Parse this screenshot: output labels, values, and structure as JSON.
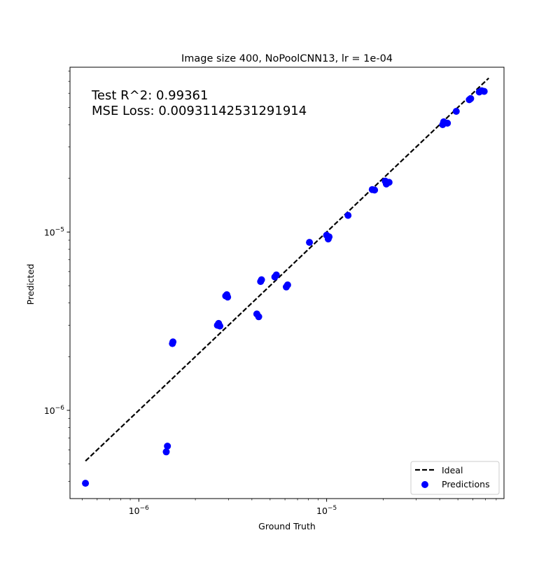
{
  "chart_data": {
    "type": "scatter",
    "title": "Image size 400, NoPoolCNN13, lr = 1e-04",
    "xlabel": "Ground Truth",
    "ylabel": "Predicted",
    "x_scale": "log",
    "y_scale": "log",
    "xlim": [
      4.3e-07,
      8.8e-05
    ],
    "ylim": [
      3.2e-07,
      8.4e-05
    ],
    "x_major_ticks": [
      {
        "value": 1e-06,
        "label": "10^{-6}"
      },
      {
        "value": 1e-05,
        "label": "10^{-5}"
      }
    ],
    "y_major_ticks": [
      {
        "value": 1e-06,
        "label": "10^{-6}"
      },
      {
        "value": 1e-05,
        "label": "10^{-5}"
      }
    ],
    "grid": false,
    "legend": {
      "position": "bottom-right",
      "entries": [
        "Ideal",
        "Predictions"
      ]
    },
    "annotations": [
      "Test R^2: 0.99361",
      "MSE Loss: 0.00931142531291914"
    ],
    "colors": {
      "ideal": "#000000",
      "predictions": "#0000ff"
    },
    "series": [
      {
        "name": "Ideal",
        "kind": "line",
        "style": "dashed",
        "x": [
          5.2e-07,
          7.3e-05
        ],
        "y": [
          5.2e-07,
          7.3e-05
        ]
      },
      {
        "name": "Predictions",
        "kind": "scatter",
        "points": [
          {
            "x": 5.2e-07,
            "y": 3.9e-07
          },
          {
            "x": 1.4e-06,
            "y": 5.85e-07
          },
          {
            "x": 1.42e-06,
            "y": 6.3e-07
          },
          {
            "x": 1.51e-06,
            "y": 2.37e-06
          },
          {
            "x": 1.52e-06,
            "y": 2.42e-06
          },
          {
            "x": 2.62e-06,
            "y": 3e-06
          },
          {
            "x": 2.66e-06,
            "y": 3.07e-06
          },
          {
            "x": 2.7e-06,
            "y": 2.97e-06
          },
          {
            "x": 2.9e-06,
            "y": 4.38e-06
          },
          {
            "x": 2.94e-06,
            "y": 4.45e-06
          },
          {
            "x": 2.97e-06,
            "y": 4.32e-06
          },
          {
            "x": 4.25e-06,
            "y": 3.47e-06
          },
          {
            "x": 4.35e-06,
            "y": 3.35e-06
          },
          {
            "x": 4.45e-06,
            "y": 5.28e-06
          },
          {
            "x": 4.5e-06,
            "y": 5.4e-06
          },
          {
            "x": 5.3e-06,
            "y": 5.6e-06
          },
          {
            "x": 5.4e-06,
            "y": 5.75e-06
          },
          {
            "x": 6.1e-06,
            "y": 4.92e-06
          },
          {
            "x": 6.2e-06,
            "y": 5.05e-06
          },
          {
            "x": 8.1e-06,
            "y": 8.75e-06
          },
          {
            "x": 1e-05,
            "y": 9.6e-06
          },
          {
            "x": 1.02e-05,
            "y": 9.15e-06
          },
          {
            "x": 1.03e-05,
            "y": 9.4e-06
          },
          {
            "x": 1.3e-05,
            "y": 1.24e-05
          },
          {
            "x": 1.75e-05,
            "y": 1.73e-05
          },
          {
            "x": 1.8e-05,
            "y": 1.72e-05
          },
          {
            "x": 2.05e-05,
            "y": 1.93e-05
          },
          {
            "x": 2.08e-05,
            "y": 1.86e-05
          },
          {
            "x": 2.15e-05,
            "y": 1.9e-05
          },
          {
            "x": 4.15e-05,
            "y": 4e-05
          },
          {
            "x": 4.2e-05,
            "y": 4.15e-05
          },
          {
            "x": 4.4e-05,
            "y": 4.08e-05
          },
          {
            "x": 4.9e-05,
            "y": 4.75e-05
          },
          {
            "x": 5.75e-05,
            "y": 5.52e-05
          },
          {
            "x": 5.85e-05,
            "y": 5.6e-05
          },
          {
            "x": 6.5e-05,
            "y": 6.1e-05
          },
          {
            "x": 6.7e-05,
            "y": 6.2e-05
          },
          {
            "x": 6.9e-05,
            "y": 6.15e-05
          }
        ]
      }
    ]
  }
}
